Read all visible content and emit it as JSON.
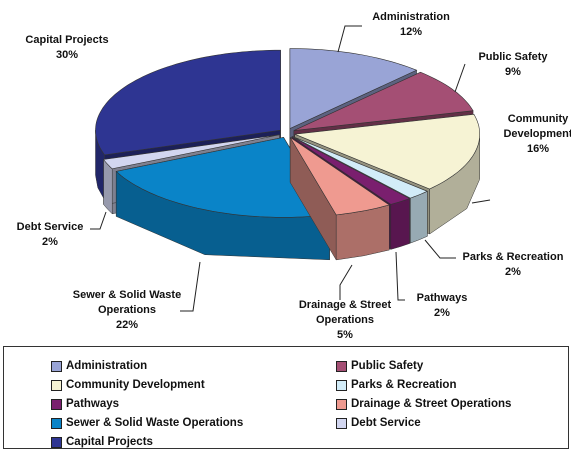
{
  "chart_data": {
    "type": "pie3d",
    "categories": [
      "Administration",
      "Public Safety",
      "Community Development",
      "Parks & Recreation",
      "Pathways",
      "Drainage & Street Operations",
      "Sewer & Solid Waste Operations",
      "Debt Service",
      "Capital Projects"
    ],
    "values": [
      12,
      9,
      16,
      2,
      2,
      5,
      22,
      2,
      30
    ],
    "value_labels": [
      "12%",
      "9%",
      "16%",
      "2%",
      "2%",
      "5%",
      "22%",
      "2%",
      "30%"
    ],
    "colors": [
      "#99a4d6",
      "#a44f74",
      "#f6f3d4",
      "#d2ecf8",
      "#7a1f6e",
      "#ef9a90",
      "#0a84c8",
      "#d2d6f0",
      "#2e3592"
    ],
    "legend": true
  }
}
